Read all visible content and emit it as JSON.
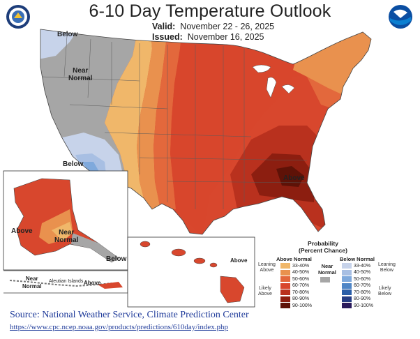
{
  "title": "6-10 Day Temperature Outlook",
  "valid_label": "Valid:",
  "valid_dates": "November 22 - 26, 2025",
  "issued_label": "Issued:",
  "issued_date": "November 16, 2025",
  "map_labels": {
    "below_nw": "Below",
    "near_normal": "Near\nNormal",
    "below_sw": "Below",
    "above_se": "Above",
    "ak_above": "Above",
    "ak_near": "Near\nNormal",
    "ak_below": "Below",
    "ak_near_sw": "Near\nNormal",
    "aleutian": "Aleutian Islands",
    "aleutian_above": "Above",
    "hi_above": "Above"
  },
  "legend": {
    "title": "Probability\n(Percent Chance)",
    "above_header": "Above Normal",
    "near_header": "Near\nNormal",
    "below_header": "Below Normal",
    "leaning_above": "Leaning\nAbove",
    "likely_above": "Likely\nAbove",
    "leaning_below": "Leaning\nBelow",
    "likely_below": "Likely\nBelow",
    "above_rows": [
      {
        "label": "33-40%",
        "color": "#f0b76a"
      },
      {
        "label": "40-50%",
        "color": "#e9914e"
      },
      {
        "label": "50-60%",
        "color": "#e3683c"
      },
      {
        "label": "60-70%",
        "color": "#d8462c"
      },
      {
        "label": "70-80%",
        "color": "#b9311e"
      },
      {
        "label": "80-90%",
        "color": "#8c1e10"
      },
      {
        "label": "90-100%",
        "color": "#5e1207"
      }
    ],
    "below_rows": [
      {
        "label": "33-40%",
        "color": "#c7d3ea"
      },
      {
        "label": "40-50%",
        "color": "#a8bfe3"
      },
      {
        "label": "50-60%",
        "color": "#7fa9dc"
      },
      {
        "label": "60-70%",
        "color": "#4f86c6"
      },
      {
        "label": "70-80%",
        "color": "#2a5ea8"
      },
      {
        "label": "80-90%",
        "color": "#253c83"
      },
      {
        "label": "90-100%",
        "color": "#2a1a5c"
      }
    ],
    "near_color": "#a6a6a6"
  },
  "source": "Source: National Weather Service, Climate Prediction Center",
  "url": "https://www.cpc.ncep.noaa.gov/products/predictions/610day/index.php"
}
